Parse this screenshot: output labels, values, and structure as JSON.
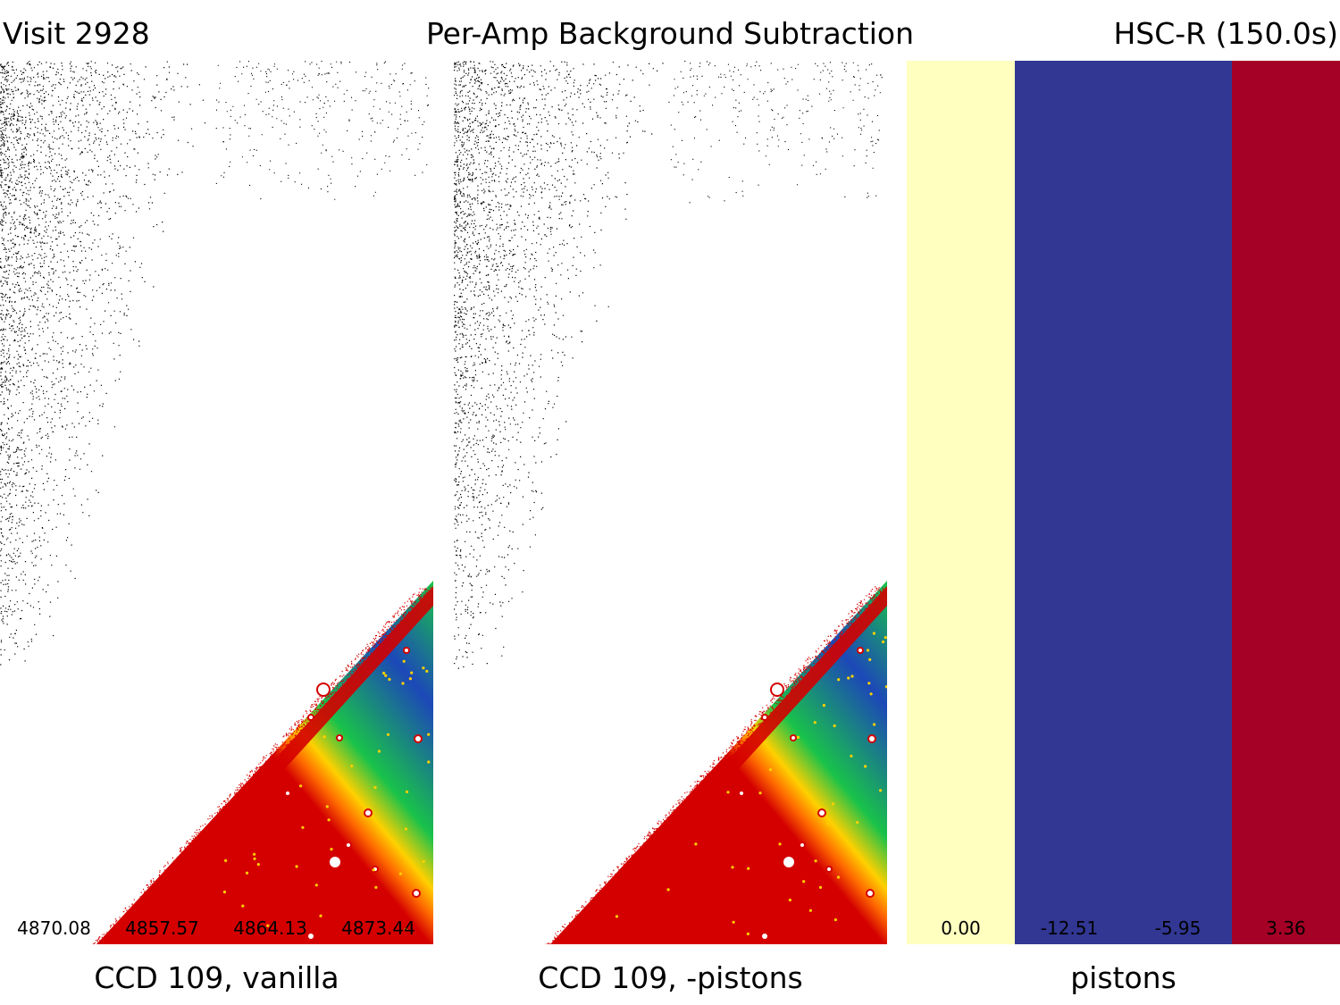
{
  "header": {
    "left": "Visit 2928",
    "center": "Per-Amp Background Subtraction",
    "right": "HSC-R (150.0s)"
  },
  "panels": [
    {
      "caption": "CCD 109, vanilla",
      "amp_values": [
        "4870.08",
        "4857.57",
        "4864.13",
        "4873.44"
      ]
    },
    {
      "caption": "CCD 109, -pistons"
    }
  ],
  "pistons": {
    "caption": "pistons",
    "amps": [
      {
        "value": "0.00",
        "color": "#ffffc0"
      },
      {
        "value": "-12.51",
        "color": "#313793"
      },
      {
        "value": "-5.95",
        "color": "#313793"
      },
      {
        "value": "3.36",
        "color": "#a50026"
      }
    ]
  },
  "colors": {
    "noise": "#000000",
    "edge_red": "#d40000",
    "edge_orange": "#ff6a00",
    "edge_yellow": "#ffd000",
    "sky_green": "#19c24a",
    "sky_blue": "#1c48b8",
    "star": "#ffffff"
  }
}
